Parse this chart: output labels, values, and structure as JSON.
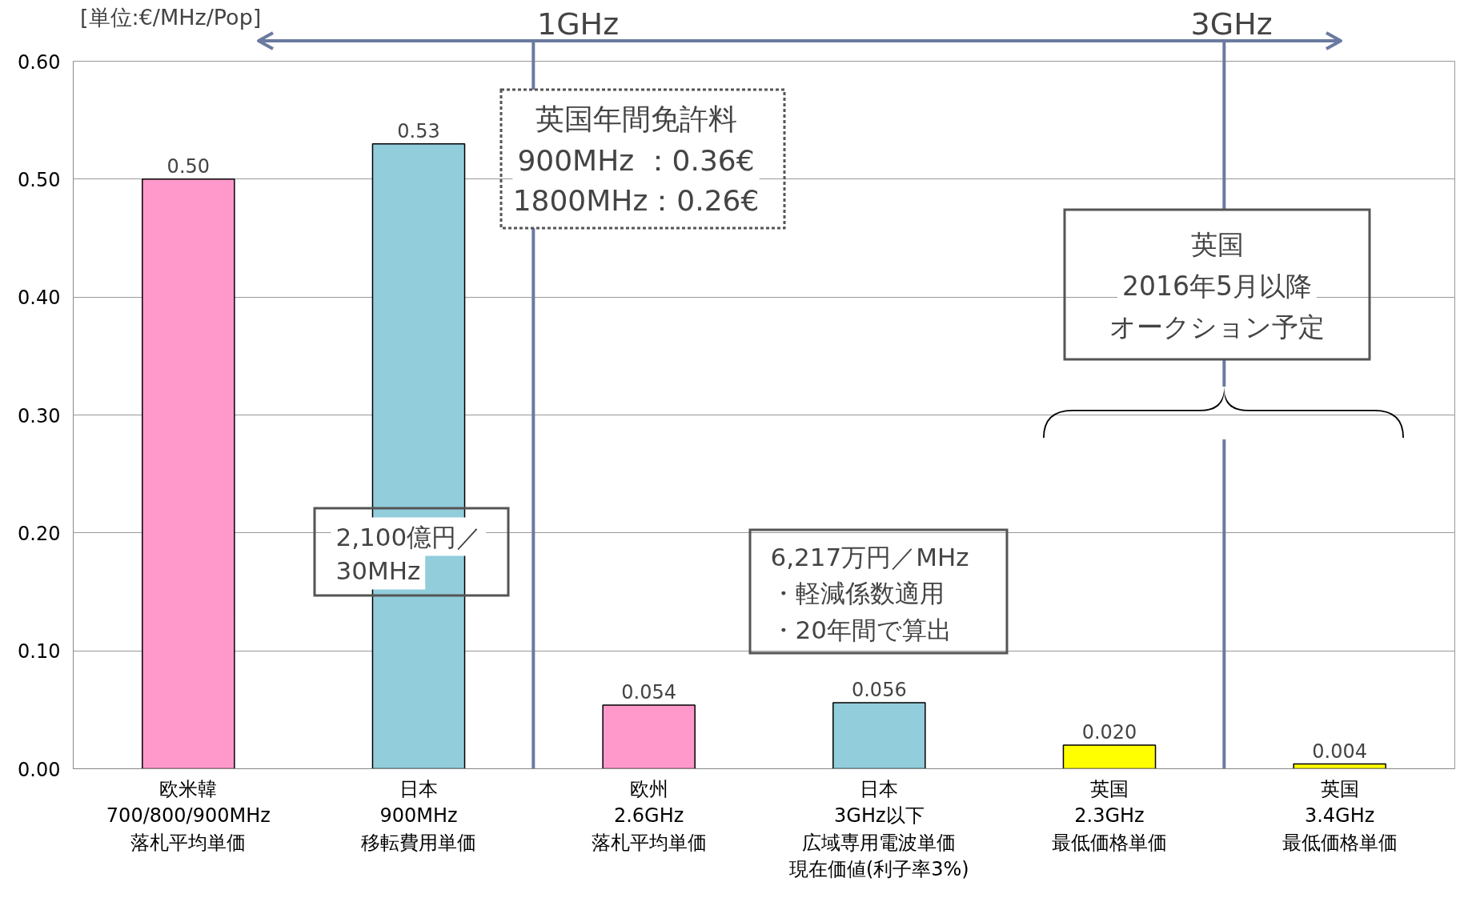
{
  "chart_data": {
    "type": "bar",
    "categories": [
      "欧米韓\n700/800/900MHz\n落札平均単価",
      "日本\n900MHz\n移転費用単価",
      "欧州\n2.6GHz\n落札平均単価",
      "日本\n3GHz以下広域専用電波単価現在価値(利子率3%)",
      "英国\n2.3GHz\n最低価格単価",
      "英国\n3.4GHz\n最低価格単価"
    ],
    "values": [
      0.5,
      0.53,
      0.054,
      0.056,
      0.02,
      0.004
    ],
    "colors": [
      "#ff99cc",
      "#92cddc",
      "#ff99cc",
      "#92cddc",
      "#ffff00",
      "#ffff00"
    ],
    "value_labels": [
      "0.50",
      "0.53",
      "0.054",
      "0.056",
      "0.020",
      "0.004"
    ],
    "ylim": [
      0,
      0.6
    ],
    "yticks": [
      {
        "value": 0,
        "label": "0.00"
      },
      {
        "value": 0.1,
        "label": "0.10"
      },
      {
        "value": 0.2,
        "label": "0.20"
      },
      {
        "value": 0.3,
        "label": "0.30"
      },
      {
        "value": 0.4,
        "label": "0.40"
      },
      {
        "value": 0.5,
        "label": "0.50"
      },
      {
        "value": 0.6,
        "label": "0.60"
      }
    ],
    "grid": "y",
    "annotations": [
      "[単位:€/MHz/Pop]",
      "1GHz",
      "3GHz",
      "英国年間免許料",
      "900MHz ：0.36€",
      "1800MHz：0.26€",
      "2,100億円／",
      "30MHz",
      "6,217万円／MHz",
      "・軽減係数適用",
      "・20年間で算出",
      "英国",
      "2016年5月以降",
      "オークション予定"
    ]
  }
}
